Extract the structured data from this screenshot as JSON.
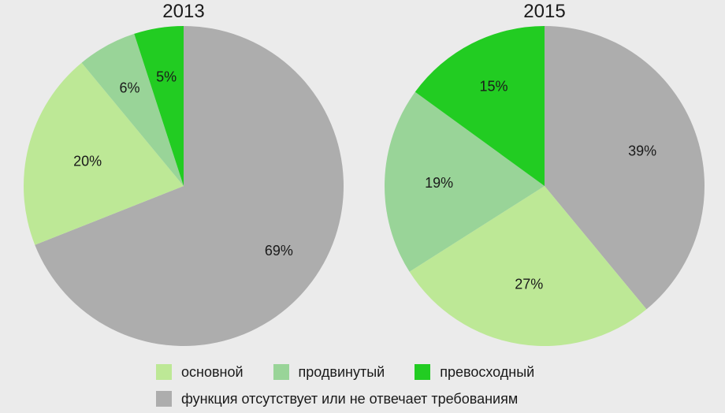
{
  "chart_data": [
    {
      "type": "pie",
      "title": "2013",
      "slices": [
        {
          "label": "функция отсутствует или не отвечает требованиям",
          "value": 69,
          "display": "69%"
        },
        {
          "label": "основной",
          "value": 20,
          "display": "20%"
        },
        {
          "label": "продвинутый",
          "value": 6,
          "display": "6%"
        },
        {
          "label": "превосходный",
          "value": 5,
          "display": "5%"
        }
      ]
    },
    {
      "type": "pie",
      "title": "2015",
      "slices": [
        {
          "label": "функция отсутствует или не отвечает требованиям",
          "value": 39,
          "display": "39%"
        },
        {
          "label": "основной",
          "value": 27,
          "display": "27%"
        },
        {
          "label": "продвинутый",
          "value": 19,
          "display": "19%"
        },
        {
          "label": "превосходный",
          "value": 15,
          "display": "15%"
        }
      ]
    }
  ],
  "legend": {
    "items": [
      {
        "label": "основной",
        "color": "#bde896"
      },
      {
        "label": "продвинутый",
        "color": "#99d498"
      },
      {
        "label": "превосходный",
        "color": "#22cc22"
      },
      {
        "label": "функция отсутствует или не отвечает требованиям",
        "color": "#adadad"
      }
    ]
  },
  "colors": {
    "функция отсутствует или не отвечает требованиям": "#adadad",
    "основной": "#bde896",
    "продвинутый": "#99d498",
    "превосходный": "#22cc22"
  }
}
